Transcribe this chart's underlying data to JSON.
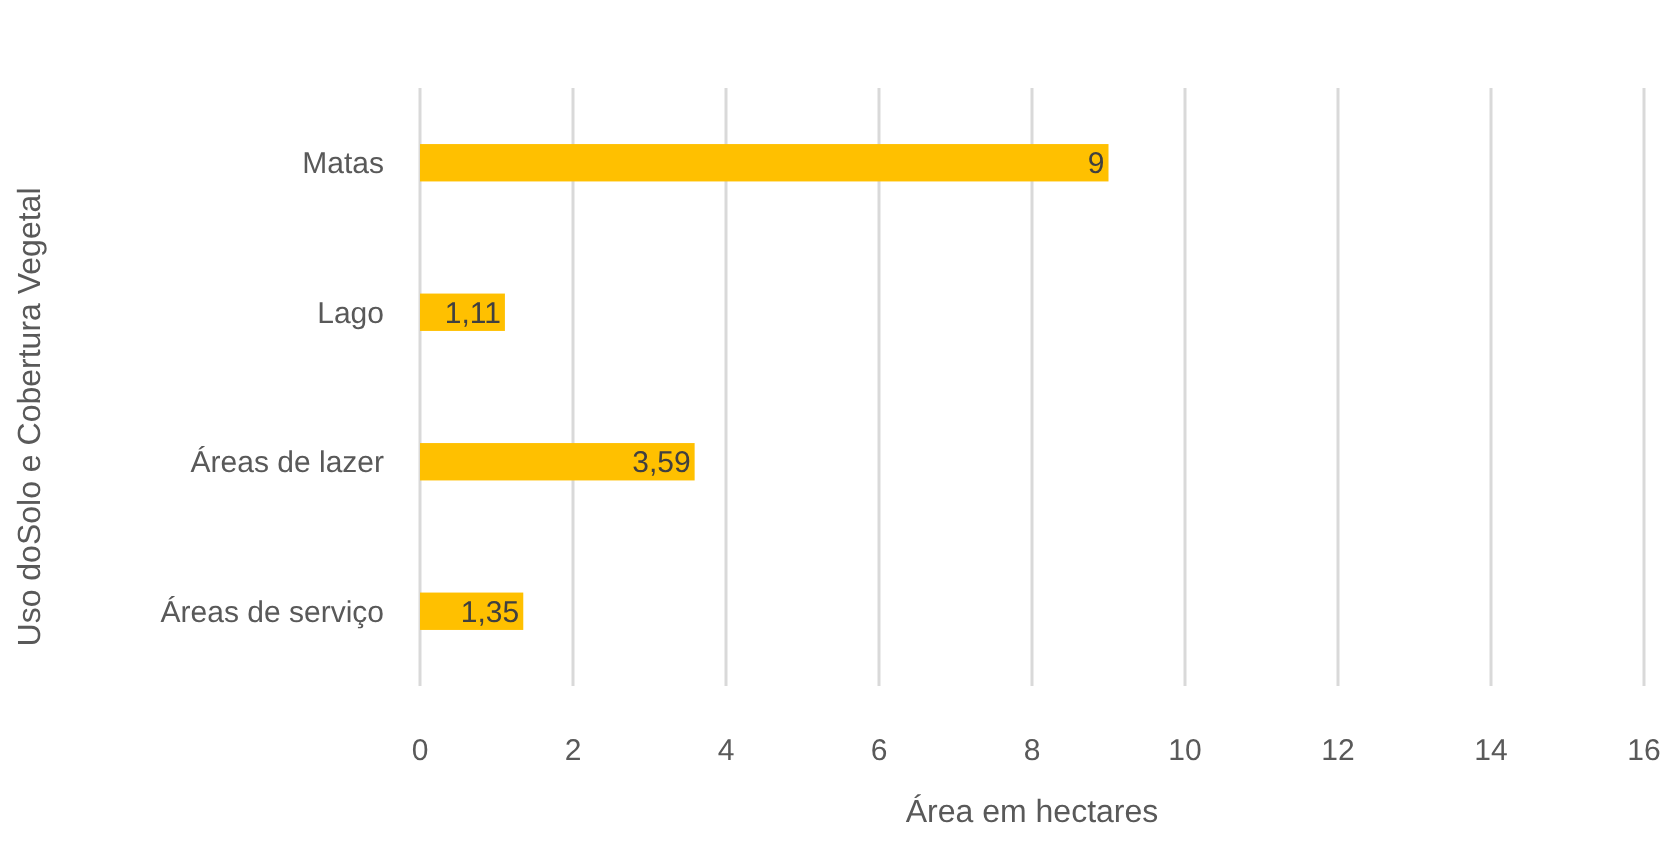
{
  "chart_data": {
    "type": "bar",
    "orientation": "horizontal",
    "xlabel": "Área em hectares",
    "ylabel": "Uso doSolo e Cobertura Vegetal",
    "categories": [
      "Matas",
      "Lago",
      "Áreas de lazer",
      "Áreas de serviço"
    ],
    "values": [
      9,
      1.11,
      3.59,
      1.35
    ],
    "value_labels": [
      "9",
      "1,11",
      "3,59",
      "1,35"
    ],
    "color": "#ffc000",
    "xlim": [
      0,
      16
    ],
    "xticks": [
      0,
      2,
      4,
      6,
      8,
      10,
      12,
      14,
      16
    ],
    "grid": "x"
  }
}
